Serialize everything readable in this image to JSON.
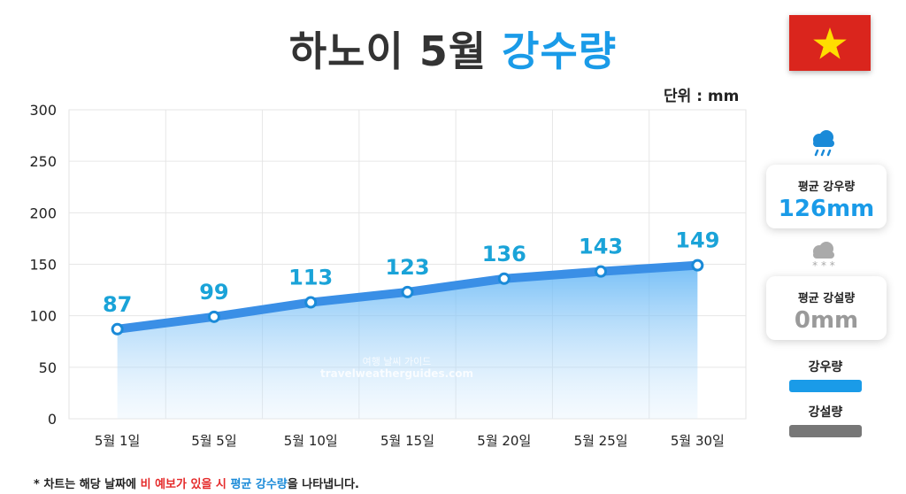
{
  "header": {
    "title_main": "하노이 5월",
    "title_accent": "강수량",
    "unit": "단위 : mm"
  },
  "chart_data": {
    "type": "area",
    "categories": [
      "5월 1일",
      "5월 5일",
      "5월 10일",
      "5월 15일",
      "5월 20일",
      "5월 25일",
      "5월 30일"
    ],
    "series": [
      {
        "name": "강우량",
        "values": [
          87,
          99,
          113,
          123,
          136,
          143,
          149
        ]
      }
    ],
    "ylim": [
      0,
      300
    ],
    "yticks": [
      0,
      50,
      100,
      150,
      200,
      250,
      300
    ],
    "grid": true,
    "watermark_line1": "여행 날씨 가이드",
    "watermark_line2": "travelweatherguides.com"
  },
  "side": {
    "rain_card": {
      "label": "평균 강우량",
      "value": "126mm"
    },
    "snow_card": {
      "label": "평균 강설량",
      "value": "0mm"
    },
    "legend": [
      {
        "label": "강우량",
        "color": "#1a9be8"
      },
      {
        "label": "강설량",
        "color": "#777777"
      }
    ],
    "rain_icon": "rain-cloud-icon",
    "snow_icon": "snow-cloud-icon"
  },
  "colors": {
    "line": "#3a8fe6",
    "point_label": "#1aa3d8",
    "rain_value": "#1a9be8",
    "snow_value": "#9a9a9a",
    "flag_red": "#da251d",
    "flag_star": "#ffdd00"
  },
  "footer": {
    "note_prefix": "* 차트는 해당 날짜에 ",
    "note_red": "비 예보가 있을 시",
    "note_space": " ",
    "note_blue": "평균 강수량",
    "note_suffix": "을 나타냅니다."
  }
}
